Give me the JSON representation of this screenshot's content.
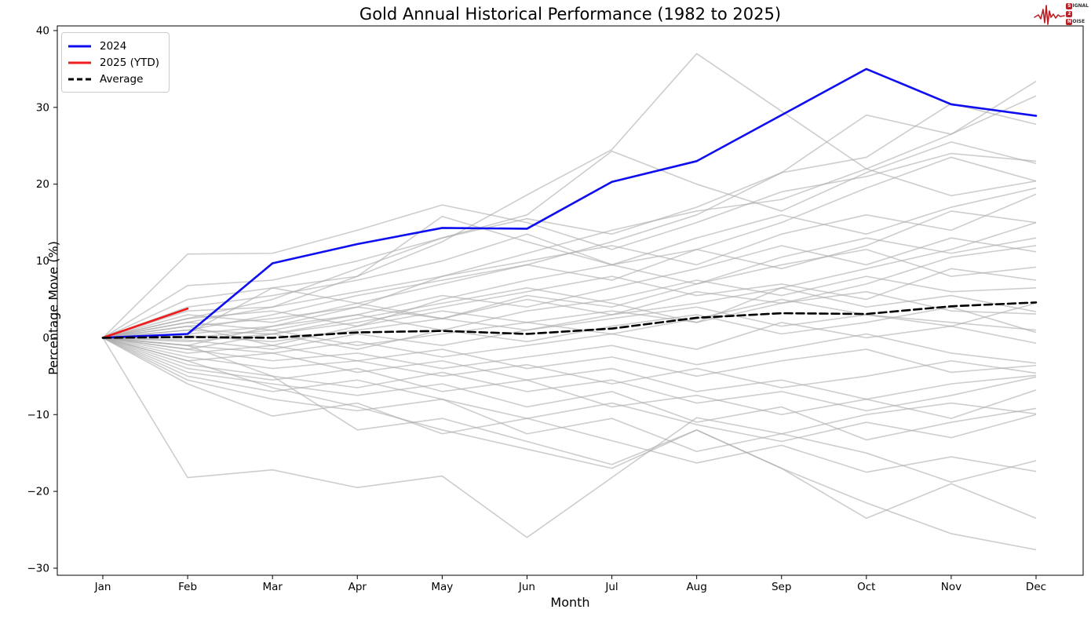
{
  "header": {
    "title": "Gold Annual Historical Performance (1982 to 2025)"
  },
  "logo": {
    "color": "#b82025",
    "waveform_icon": "ecg-waveform-icon",
    "rows": [
      {
        "initial": "S",
        "rest": "IGNAL"
      },
      {
        "initial": "2",
        "rest": ""
      },
      {
        "initial": "N",
        "rest": "OISE"
      }
    ]
  },
  "legend": {
    "items": [
      {
        "label": "2024",
        "color": "#0e0ef0",
        "dash": false
      },
      {
        "label": "2025 (YTD)",
        "color": "#ee1c1c",
        "dash": false
      },
      {
        "label": "Average",
        "color": "#000000",
        "dash": true
      }
    ]
  },
  "chart_data": {
    "type": "line",
    "title": "Gold Annual Historical Performance (1982 to 2025)",
    "xlabel": "Month",
    "ylabel": "Percentage Move (%)",
    "categories": [
      "Jan",
      "Feb",
      "Mar",
      "Apr",
      "May",
      "Jun",
      "Jul",
      "Aug",
      "Sep",
      "Oct",
      "Nov",
      "Dec"
    ],
    "y_ticks": [
      40,
      30,
      20,
      10,
      0,
      -10,
      -20,
      -30
    ],
    "y_ticklabels": [
      "40",
      "30",
      "20",
      "10",
      "0",
      "−10",
      "−20",
      "−30"
    ],
    "ylim": [
      -30.7,
      40.6
    ],
    "grid": false,
    "legend_position": "upper left",
    "series": [
      {
        "name": "2024",
        "color": "#0e0ef0",
        "style": "solid",
        "width": 2.6,
        "values": [
          0,
          0.5,
          9.7,
          12.2,
          14.3,
          14.2,
          20.3,
          23.0,
          29.0,
          35.0,
          30.4,
          28.9
        ]
      },
      {
        "name": "2025 (YTD)",
        "color": "#ee1c1c",
        "style": "solid",
        "width": 2.6,
        "values": [
          0,
          3.8
        ]
      },
      {
        "name": "Average",
        "color": "#000000",
        "style": "dashed",
        "width": 2.6,
        "values": [
          0,
          0.1,
          0.0,
          0.7,
          0.9,
          0.5,
          1.2,
          2.6,
          3.2,
          3.1,
          4.1,
          4.6
        ]
      }
    ],
    "historical_series_note": "unlabeled gray year lines 1982-2023, values estimated from pixels",
    "historical_color": "#ababab",
    "historical_series": [
      [
        0,
        2,
        4,
        8,
        12.5,
        18.6,
        24.5,
        37,
        29.5,
        22,
        18.5,
        20.4
      ],
      [
        0,
        1,
        3,
        5.5,
        7.5,
        9.5,
        12.5,
        16,
        21.5,
        29,
        26.5,
        33.4
      ],
      [
        0,
        -1,
        1.5,
        4,
        8,
        11,
        14,
        16.5,
        18,
        22,
        26.5,
        31.5
      ],
      [
        0,
        2.5,
        5,
        9,
        13,
        15.5,
        13.5,
        17,
        21.5,
        23.5,
        30.5,
        27.8
      ],
      [
        0,
        10.9,
        11,
        14,
        17.3,
        15,
        11.5,
        15,
        19,
        21,
        24,
        23
      ],
      [
        0,
        6.8,
        7.5,
        10,
        13,
        16,
        24.3,
        20,
        16.5,
        21.5,
        25.5,
        22.7
      ],
      [
        0,
        5,
        6.5,
        8,
        15.8,
        12.5,
        9.5,
        11.5,
        15,
        19.5,
        23.5,
        20.4
      ],
      [
        0,
        4,
        5.5,
        7.5,
        10,
        13.5,
        9.5,
        13,
        16,
        13.5,
        17,
        19.5
      ],
      [
        0,
        3.5,
        4,
        6,
        8,
        10,
        12,
        9.5,
        13.5,
        16,
        14,
        18.7
      ],
      [
        0,
        3,
        2,
        4.5,
        7,
        9.5,
        7.5,
        11.5,
        9,
        12,
        16.5,
        15
      ],
      [
        0,
        2.5,
        3.5,
        1.5,
        5,
        7.5,
        9.5,
        7,
        10.5,
        13,
        11,
        13
      ],
      [
        0,
        2,
        1,
        3,
        5.5,
        4,
        6.5,
        9,
        12,
        9.5,
        13,
        11.2
      ],
      [
        0,
        1.5,
        2.5,
        4,
        2.5,
        5.5,
        4,
        7,
        9.5,
        11.5,
        8,
        9.2
      ],
      [
        0,
        1,
        0.5,
        2,
        4,
        6,
        8,
        5.5,
        7,
        5,
        9,
        7.5
      ],
      [
        0,
        0.5,
        1.5,
        3,
        1,
        3.5,
        5,
        7.5,
        5.5,
        8,
        6,
        6.5
      ],
      [
        0,
        0.3,
        -0.5,
        1,
        2.5,
        1,
        3,
        4.5,
        6.5,
        4,
        5.5,
        3.4
      ],
      [
        0,
        0,
        1,
        -1,
        0.5,
        2,
        3.5,
        2,
        4.5,
        6,
        3.5,
        3.1
      ],
      [
        0,
        -0.3,
        -1.5,
        0.5,
        -1,
        1,
        2.5,
        4,
        1.5,
        3,
        2,
        1.0
      ],
      [
        0,
        -0.5,
        0.5,
        -1.5,
        1,
        -0.5,
        1.5,
        3,
        0.5,
        2,
        4,
        0.7
      ],
      [
        0,
        -1,
        -2,
        -0.5,
        -2.5,
        -1,
        0.5,
        -1.5,
        2,
        0,
        1.5,
        -0.7
      ],
      [
        0,
        -1.5,
        -3,
        -2,
        -4,
        -2.5,
        -1,
        -3.5,
        -1.5,
        0.5,
        -2,
        -3.3
      ],
      [
        0,
        -2,
        -1,
        -3,
        -1.5,
        -4,
        -2.5,
        -5,
        -3,
        -1.5,
        -4.5,
        -3.6
      ],
      [
        0,
        -2.5,
        -4,
        -3,
        -5,
        -3.5,
        -6,
        -4,
        -6.5,
        -5,
        -3,
        -4.6
      ],
      [
        0,
        -3,
        -2,
        -4.5,
        -3,
        -5.5,
        -4,
        -7,
        -5.5,
        -8,
        -6,
        -4.9
      ],
      [
        0,
        -3.5,
        -5,
        -6.5,
        -4.5,
        -7,
        -5.5,
        -8.5,
        -7,
        -9.5,
        -7.5,
        -5.1
      ],
      [
        0,
        -4,
        -5.5,
        -4,
        -7,
        -5.5,
        -9,
        -7.5,
        -10,
        -8,
        -10.5,
        -6.8
      ],
      [
        0,
        -4.5,
        -6,
        -7.5,
        -6,
        -9,
        -7,
        -11,
        -9,
        -13.3,
        -11,
        -9.2
      ],
      [
        0,
        -5,
        -7,
        -5.5,
        -8,
        -10.5,
        -8.5,
        -11.3,
        -13.5,
        -11,
        -13,
        -10
      ],
      [
        0,
        -5.5,
        -8,
        -9.5,
        -8,
        -12.5,
        -10.5,
        -14.8,
        -12.5,
        -15,
        -18.8,
        -16
      ],
      [
        0,
        -6,
        -10.2,
        -8.5,
        -12.5,
        -10.5,
        -13.4,
        -16.3,
        -14,
        -17.5,
        -15.5,
        -17.4
      ],
      [
        0,
        -1,
        -5,
        -12,
        -10.5,
        -13.5,
        -16.5,
        -12,
        -17,
        -21.5,
        -25.5,
        -27.6
      ],
      [
        0,
        -18.2,
        -17.2,
        -19.5,
        -18,
        -26,
        -18.2,
        -10.4,
        -12.5,
        -10,
        -8.5,
        -9.9
      ],
      [
        0,
        -3,
        -6.5,
        -9,
        -12,
        -14.5,
        -17,
        -12,
        -17,
        -23.5,
        -19,
        -23.5
      ],
      [
        0,
        0.5,
        6.5,
        4.5,
        2.5,
        5,
        3,
        6,
        4.5,
        7,
        10.5,
        12
      ],
      [
        0,
        1.5,
        -1,
        1.5,
        3.5,
        2,
        0.5,
        2.5,
        5,
        3,
        1.5,
        4.5
      ],
      [
        0,
        -1.5,
        0.5,
        2.5,
        4.5,
        6.5,
        4.5,
        2,
        6.5,
        9,
        11.5,
        15
      ]
    ]
  }
}
